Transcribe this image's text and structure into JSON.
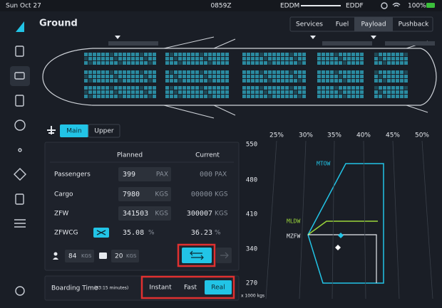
{
  "status_bar": {
    "date": "Sun Oct 27",
    "time": "0859Z",
    "origin": "EDDM",
    "destination": "EDDF",
    "battery": "100%"
  },
  "header": {
    "title": "Ground",
    "tabs": [
      "Services",
      "Fuel",
      "Payload",
      "Pushback"
    ]
  },
  "deck_toggle": [
    "Main",
    "Upper"
  ],
  "payload_table": {
    "columns": [
      "Planned",
      "Current"
    ],
    "rows": [
      {
        "label": "Passengers",
        "planned": "399",
        "planned_unit": "PAX",
        "current": "000",
        "current_unit": "PAX"
      },
      {
        "label": "Cargo",
        "planned": "7980",
        "planned_unit": "KGS",
        "current": "00000",
        "current_unit": "KGS"
      },
      {
        "label": "ZFW",
        "planned": "341503",
        "planned_unit": "KGS",
        "current": "300007",
        "current_unit": "KGS"
      },
      {
        "label": "ZFWCG",
        "planned": "35.08",
        "planned_unit": "%",
        "current": "36.23",
        "current_unit": "%"
      }
    ]
  },
  "extras": [
    {
      "value": "84",
      "unit": "KGS"
    },
    {
      "value": "20",
      "unit": "KGS"
    }
  ],
  "boarding": {
    "label": "Boarding Time",
    "duration": "(33:15 minutes)",
    "options": [
      "Instant",
      "Fast",
      "Real"
    ]
  },
  "cg_chart": {
    "xticks": [
      "25%",
      "30%",
      "35%",
      "40%",
      "45%",
      "50%"
    ],
    "yticks": [
      "550",
      "480",
      "410",
      "340",
      "270"
    ],
    "unit_label": "x 1000 kgs",
    "limits": [
      "MTOW",
      "MLDW",
      "MZFW"
    ]
  }
}
